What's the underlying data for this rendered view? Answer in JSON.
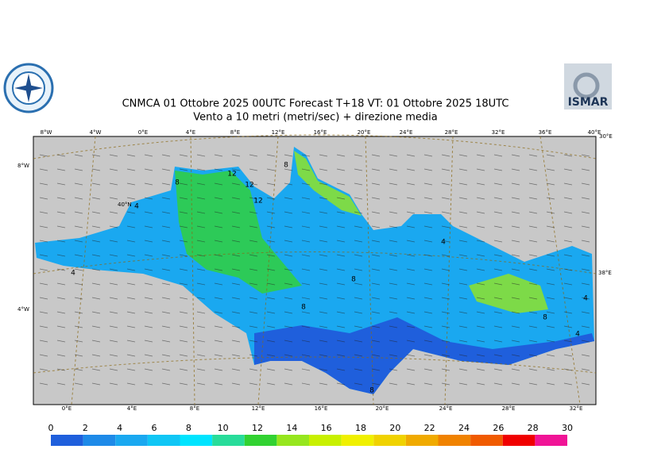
{
  "header": {
    "title": "CNMCA 01  Ottobre  2025 00UTC Forecast T+18 VT: 01  Ottobre  2025 18UTC",
    "subtitle": "Vento a 10 metri (metri/sec) + direzione media",
    "logo_right": "ISMAR"
  },
  "graticule": {
    "top": [
      "8°W",
      "4°W",
      "0°E",
      "4°E",
      "8°E",
      "12°E",
      "16°E",
      "20°E",
      "24°E",
      "28°E",
      "32°E",
      "36°E",
      "40°E"
    ],
    "bottom": [
      "0°E",
      "4°E",
      "8°E",
      "12°E",
      "16°E",
      "20°E",
      "24°E",
      "28°E",
      "32°E"
    ],
    "left": [
      "8°W",
      "40°N",
      "4°W"
    ],
    "right": [
      "30°E",
      "38°E"
    ]
  },
  "contour_labels": [
    "12",
    "12",
    "12",
    "8",
    "8",
    "4",
    "8",
    "8",
    "4",
    "8",
    "4",
    "4",
    "4",
    "8"
  ],
  "colorbar": {
    "ticks": [
      0,
      2,
      4,
      6,
      8,
      10,
      12,
      14,
      16,
      18,
      20,
      22,
      24,
      26,
      28,
      30
    ],
    "colors": [
      "#1f5fdc",
      "#1e8ae8",
      "#1aa8f0",
      "#10c6f5",
      "#00e4ff",
      "#28dc9a",
      "#32d232",
      "#96e61e",
      "#c8f000",
      "#f0f000",
      "#f0d200",
      "#f0aa00",
      "#f08200",
      "#f05a00",
      "#f00000",
      "#f01496"
    ]
  }
}
